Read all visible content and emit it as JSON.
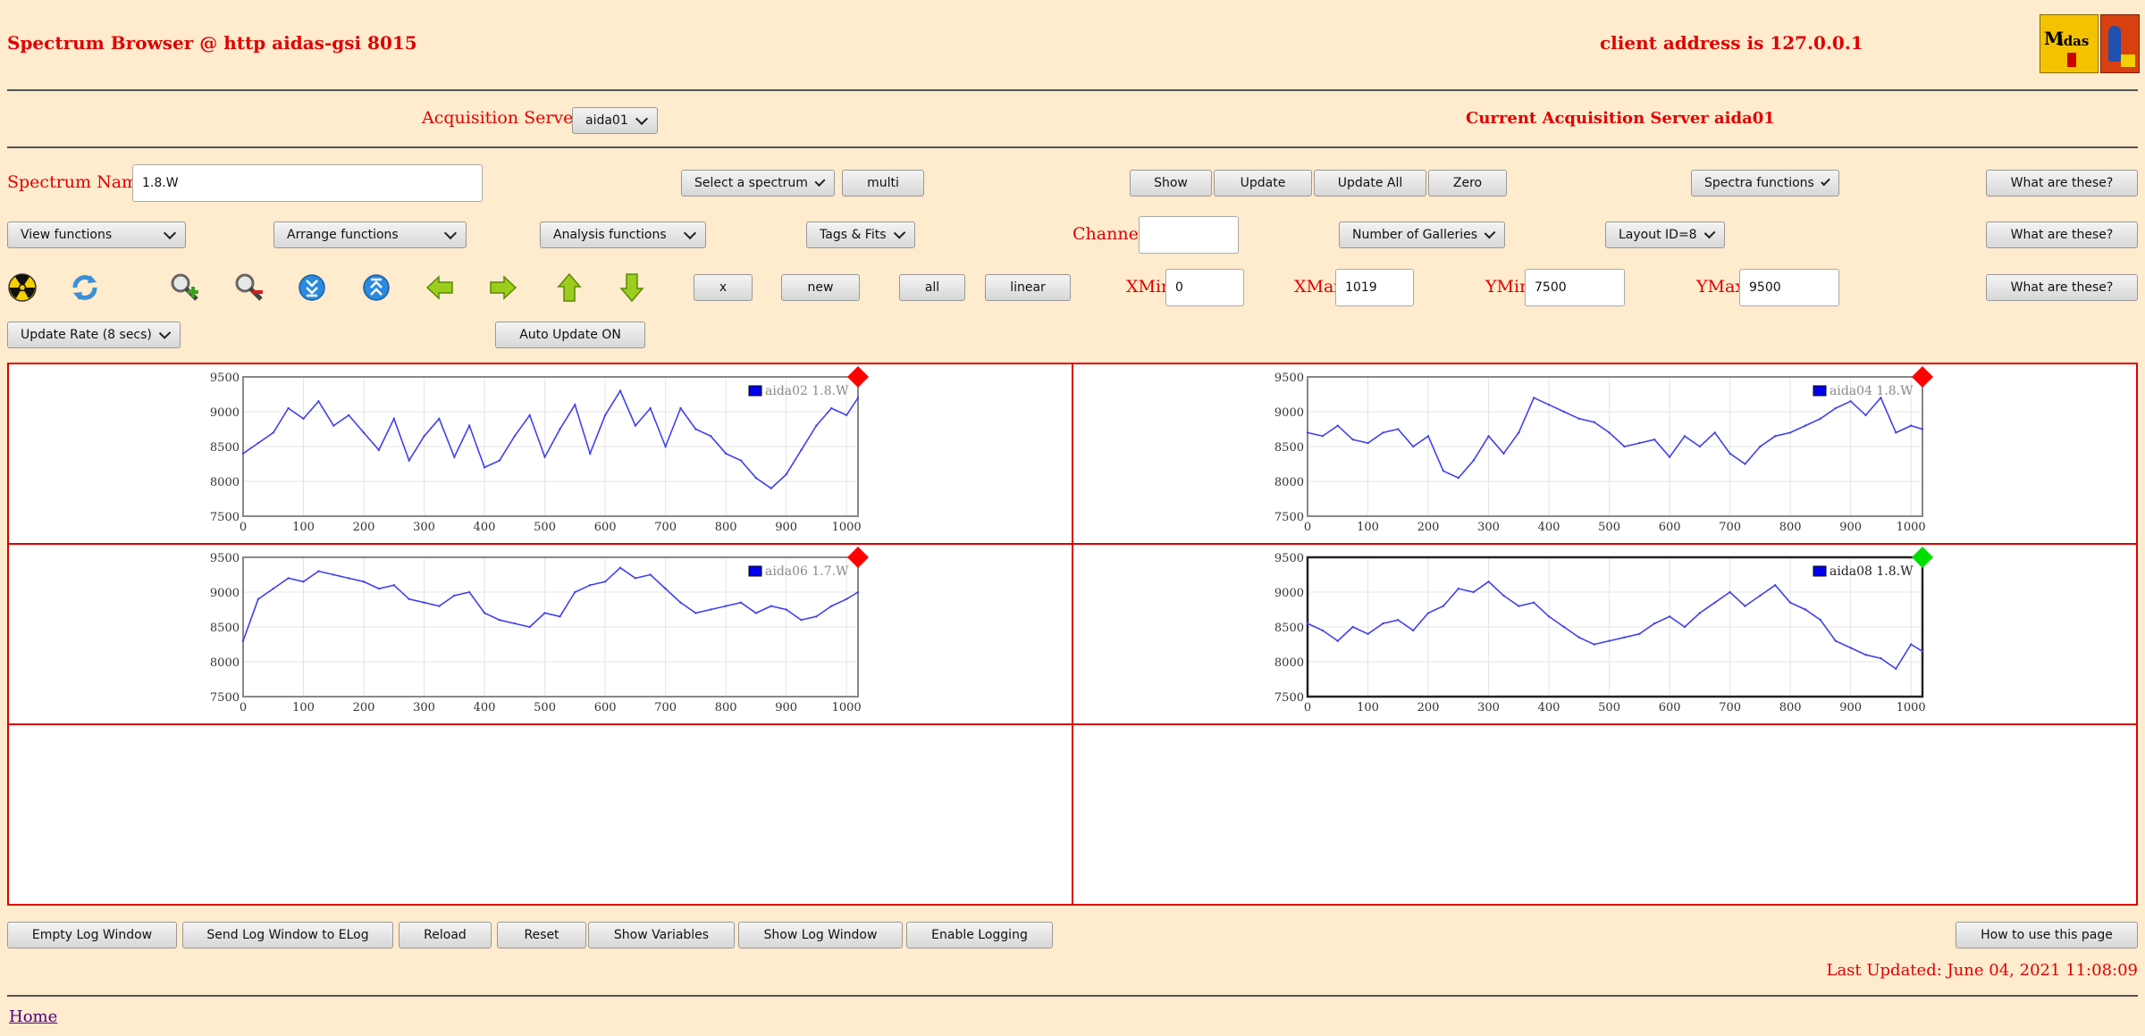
{
  "header": {
    "title": "Spectrum Browser @ http aidas-gsi 8015",
    "client_address": "client address is 127.0.0.1"
  },
  "servers": {
    "label": "Acquisition Servers",
    "selected": "aida01",
    "current": "Current Acquisition Server aida01"
  },
  "spectrum": {
    "name_label": "Spectrum Name:",
    "name_value": "1.8.W",
    "select_label": "Select a spectrum",
    "multi": "multi",
    "show": "Show",
    "update": "Update",
    "update_all": "Update All",
    "zero": "Zero",
    "spectra_functions": "Spectra functions",
    "help": "What are these?"
  },
  "functions": {
    "view": "View functions",
    "arrange": "Arrange functions",
    "analysis": "Analysis functions",
    "tags": "Tags & Fits",
    "channel_label": "Channel:",
    "channel_value": "",
    "galleries": "Number of Galleries",
    "layout": "Layout ID=8",
    "help": "What are these?"
  },
  "toolbar": {
    "icons": [
      "radiation-icon",
      "refresh-icon",
      "zoom-in-icon",
      "zoom-out-icon",
      "expand-y-icon",
      "shrink-y-icon",
      "arrow-left-icon",
      "arrow-right-icon",
      "arrow-up-icon",
      "arrow-down-icon"
    ],
    "x": "x",
    "new": "new",
    "all": "all",
    "linear": "linear",
    "xmin_label": "XMin",
    "xmin_value": "0",
    "xmax_label": "XMax",
    "xmax_value": "1019",
    "ymin_label": "YMin",
    "ymin_value": "7500",
    "ymax_label": "YMax",
    "ymax_value": "9500",
    "help": "What are these?"
  },
  "rate": {
    "label": "Update Rate (8 secs)",
    "auto": "Auto Update ON"
  },
  "colors": {
    "background": "#ffebcd",
    "accent_red": "#e00000",
    "series": "#4040f0",
    "status_red": "#ff0000",
    "status_green": "#00e000"
  },
  "chart_data": [
    {
      "type": "line",
      "legend": "aida02 1.8.W",
      "status": "red",
      "xlim": [
        0,
        1019
      ],
      "ylim": [
        7500,
        9500
      ],
      "xticks": [
        "0",
        "100",
        "200",
        "300",
        "400",
        "500",
        "600",
        "700",
        "800",
        "900",
        "1000"
      ],
      "yticks": [
        "9500",
        "9000",
        "8500",
        "8000",
        "7500"
      ],
      "x": [
        0,
        25,
        50,
        75,
        100,
        125,
        150,
        175,
        200,
        225,
        250,
        275,
        300,
        325,
        350,
        375,
        400,
        425,
        450,
        475,
        500,
        525,
        550,
        575,
        600,
        625,
        650,
        675,
        700,
        725,
        750,
        775,
        800,
        825,
        850,
        875,
        900,
        925,
        950,
        975,
        1000,
        1019
      ],
      "values": [
        8400,
        8550,
        8700,
        9050,
        8900,
        9150,
        8800,
        8950,
        8700,
        8450,
        8900,
        8300,
        8650,
        8900,
        8350,
        8800,
        8200,
        8300,
        8650,
        8950,
        8350,
        8750,
        9100,
        8400,
        8950,
        9300,
        8800,
        9050,
        8500,
        9050,
        8750,
        8650,
        8400,
        8300,
        8050,
        7900,
        8100,
        8450,
        8800,
        9050,
        8950,
        9200
      ]
    },
    {
      "type": "line",
      "legend": "aida04 1.8.W",
      "status": "red",
      "xlim": [
        0,
        1019
      ],
      "ylim": [
        7500,
        9500
      ],
      "xticks": [
        "0",
        "100",
        "200",
        "300",
        "400",
        "500",
        "600",
        "700",
        "800",
        "900",
        "1000"
      ],
      "yticks": [
        "9500",
        "9000",
        "8500",
        "8000",
        "7500"
      ],
      "x": [
        0,
        25,
        50,
        75,
        100,
        125,
        150,
        175,
        200,
        225,
        250,
        275,
        300,
        325,
        350,
        375,
        400,
        425,
        450,
        475,
        500,
        525,
        550,
        575,
        600,
        625,
        650,
        675,
        700,
        725,
        750,
        775,
        800,
        825,
        850,
        875,
        900,
        925,
        950,
        975,
        1000,
        1019
      ],
      "values": [
        8700,
        8650,
        8800,
        8600,
        8550,
        8700,
        8750,
        8500,
        8650,
        8150,
        8050,
        8300,
        8650,
        8400,
        8700,
        9200,
        9100,
        9000,
        8900,
        8850,
        8700,
        8500,
        8550,
        8600,
        8350,
        8650,
        8500,
        8700,
        8400,
        8250,
        8500,
        8650,
        8700,
        8800,
        8900,
        9050,
        9150,
        8950,
        9200,
        8700,
        8800,
        8750
      ]
    },
    {
      "type": "line",
      "legend": "aida06 1.7.W",
      "status": "red",
      "xlim": [
        0,
        1019
      ],
      "ylim": [
        7500,
        9500
      ],
      "xticks": [
        "0",
        "100",
        "200",
        "300",
        "400",
        "500",
        "600",
        "700",
        "800",
        "900",
        "1000"
      ],
      "yticks": [
        "9500",
        "9000",
        "8500",
        "8000",
        "7500"
      ],
      "x": [
        0,
        25,
        50,
        75,
        100,
        125,
        150,
        175,
        200,
        225,
        250,
        275,
        300,
        325,
        350,
        375,
        400,
        425,
        450,
        475,
        500,
        525,
        550,
        575,
        600,
        625,
        650,
        675,
        700,
        725,
        750,
        775,
        800,
        825,
        850,
        875,
        900,
        925,
        950,
        975,
        1000,
        1019
      ],
      "values": [
        8300,
        8900,
        9050,
        9200,
        9150,
        9300,
        9250,
        9200,
        9150,
        9050,
        9100,
        8900,
        8850,
        8800,
        8950,
        9000,
        8700,
        8600,
        8550,
        8500,
        8700,
        8650,
        9000,
        9100,
        9150,
        9350,
        9200,
        9250,
        9050,
        8850,
        8700,
        8750,
        8800,
        8850,
        8700,
        8800,
        8750,
        8600,
        8650,
        8800,
        8900,
        9000
      ]
    },
    {
      "type": "line",
      "legend": "aida08 1.8.W",
      "status": "green",
      "xlim": [
        0,
        1019
      ],
      "ylim": [
        7500,
        9500
      ],
      "xticks": [
        "0",
        "100",
        "200",
        "300",
        "400",
        "500",
        "600",
        "700",
        "800",
        "900",
        "1000"
      ],
      "yticks": [
        "9500",
        "9000",
        "8500",
        "8000",
        "7500"
      ],
      "x": [
        0,
        25,
        50,
        75,
        100,
        125,
        150,
        175,
        200,
        225,
        250,
        275,
        300,
        325,
        350,
        375,
        400,
        425,
        450,
        475,
        500,
        525,
        550,
        575,
        600,
        625,
        650,
        675,
        700,
        725,
        750,
        775,
        800,
        825,
        850,
        875,
        900,
        925,
        950,
        975,
        1000,
        1019
      ],
      "values": [
        8550,
        8450,
        8300,
        8500,
        8400,
        8550,
        8600,
        8450,
        8700,
        8800,
        9050,
        9000,
        9150,
        8950,
        8800,
        8850,
        8650,
        8500,
        8350,
        8250,
        8300,
        8350,
        8400,
        8550,
        8650,
        8500,
        8700,
        8850,
        9000,
        8800,
        8950,
        9100,
        8850,
        8750,
        8600,
        8300,
        8200,
        8100,
        8050,
        7900,
        8250,
        8150
      ]
    }
  ],
  "footer": {
    "empty_log": "Empty Log Window",
    "send_log": "Send Log Window to ELog",
    "reload": "Reload",
    "reset": "Reset",
    "show_vars": "Show Variables",
    "show_log": "Show Log Window",
    "enable_logging": "Enable Logging",
    "how_to": "How to use this page",
    "last_updated": "Last Updated: June 04, 2021 11:08:09",
    "home": "Home"
  }
}
